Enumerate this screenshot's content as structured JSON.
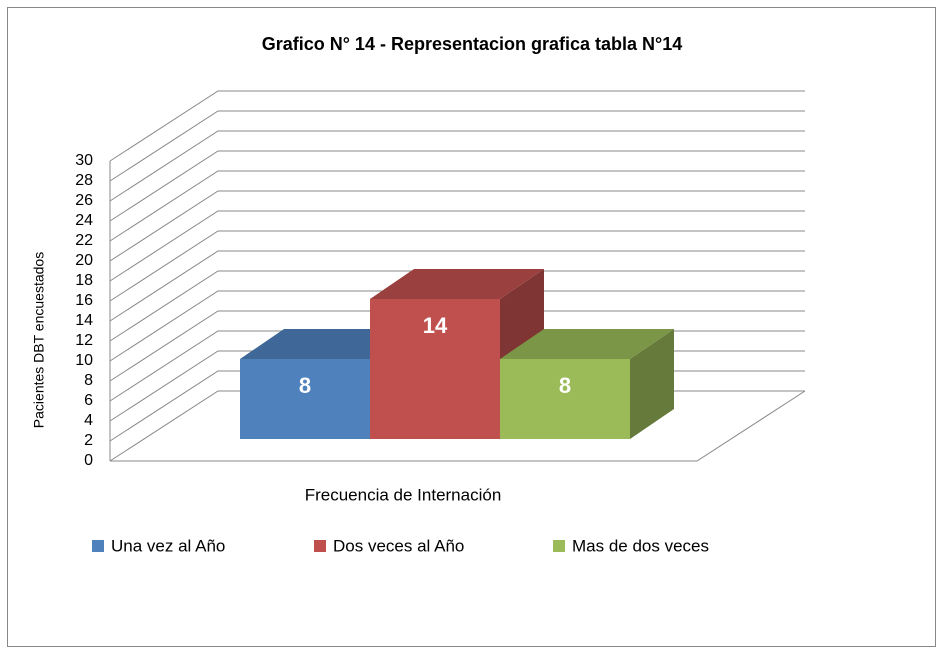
{
  "chart_data": {
    "type": "bar3d",
    "title": "Grafico N° 14 - Representacion grafica tabla N°14",
    "ylabel": "Pacientes  DBT encuestados",
    "xlabel": "Frecuencia de Internación",
    "series": [
      {
        "name": "Una vez al Año",
        "color": "#4f81bd",
        "values": [
          8
        ]
      },
      {
        "name": "Dos veces al Año",
        "color": "#c0504d",
        "values": [
          14
        ]
      },
      {
        "name": "Mas de dos veces",
        "color": "#9bbb59",
        "values": [
          8
        ]
      }
    ],
    "ylim": [
      0,
      30
    ],
    "yticks": [
      0,
      2,
      4,
      6,
      8,
      10,
      12,
      14,
      16,
      18,
      20,
      22,
      24,
      26,
      28,
      30
    ],
    "grid": true,
    "data_labels": true,
    "legend": "bottom"
  }
}
